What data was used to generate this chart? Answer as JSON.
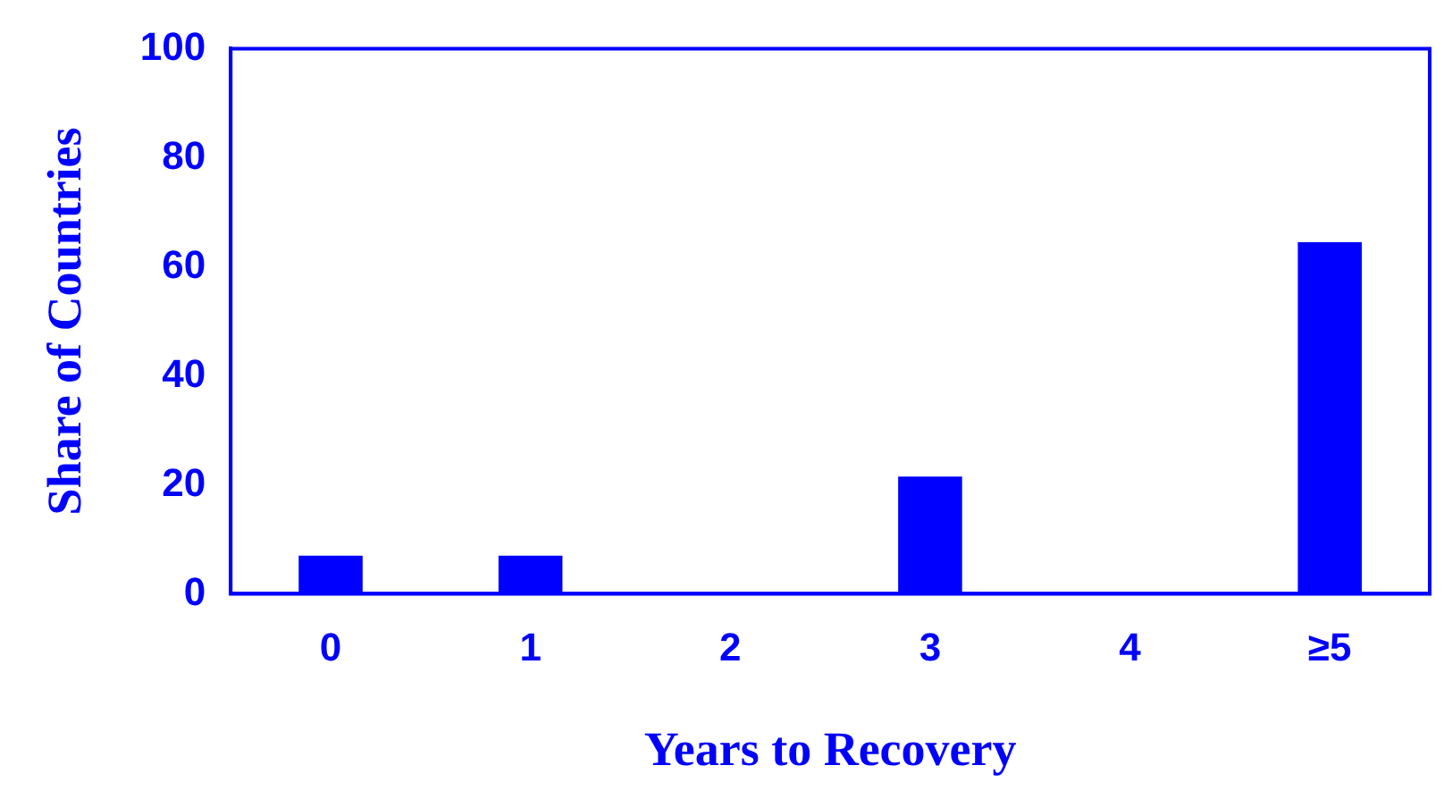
{
  "chart_data": {
    "type": "bar",
    "xlabel": "Years to Recovery",
    "ylabel": "Share of Countries",
    "categories": [
      "0",
      "1",
      "2",
      "3",
      "4",
      "≥5"
    ],
    "values": [
      7,
      7,
      0,
      21.5,
      0,
      64.5
    ],
    "color": "#0000ff",
    "ylim": [
      0,
      100
    ],
    "yticks": [
      0,
      20,
      40,
      60,
      80,
      100
    ],
    "grid": false,
    "legend": false
  }
}
